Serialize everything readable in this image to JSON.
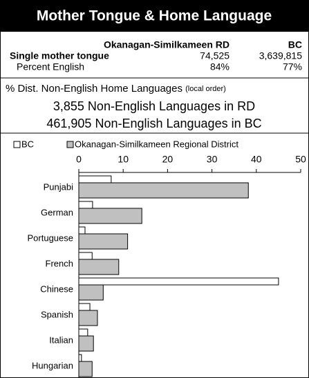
{
  "header": {
    "title": "Mother Tongue & Home Language"
  },
  "table": {
    "columns": [
      "Okanagan-Similkameen RD",
      "BC"
    ],
    "rows": [
      [
        "Single mother tongue",
        "74,525",
        "3,639,815"
      ],
      [
        "Percent English",
        "84%",
        "77%"
      ]
    ]
  },
  "summary": {
    "heading": "% Dist. Non-English Home Languages",
    "note": "(local order)",
    "lines": [
      "3,855 Non-English Languages in RD",
      "461,905 Non-English Languages in BC"
    ]
  },
  "chart_data": {
    "type": "hbar",
    "categories": [
      "Punjabi",
      "German",
      "Portuguese",
      "French",
      "Chinese",
      "Spanish",
      "Italian",
      "Hungarian"
    ],
    "series": [
      {
        "name": "BC",
        "color": "#ffffff",
        "values": [
          7.3,
          3.1,
          1.4,
          3,
          45,
          2.5,
          2,
          0.6
        ]
      },
      {
        "name": "Okanagan-Similkameen Regional District",
        "color": "#c0c0c0",
        "values": [
          38.2,
          14.2,
          11,
          9,
          5.5,
          4.2,
          3.3,
          3
        ]
      }
    ],
    "xlim": [
      0,
      50
    ],
    "xticks": [
      0,
      10,
      20,
      30,
      40,
      50
    ],
    "legend": "top"
  }
}
